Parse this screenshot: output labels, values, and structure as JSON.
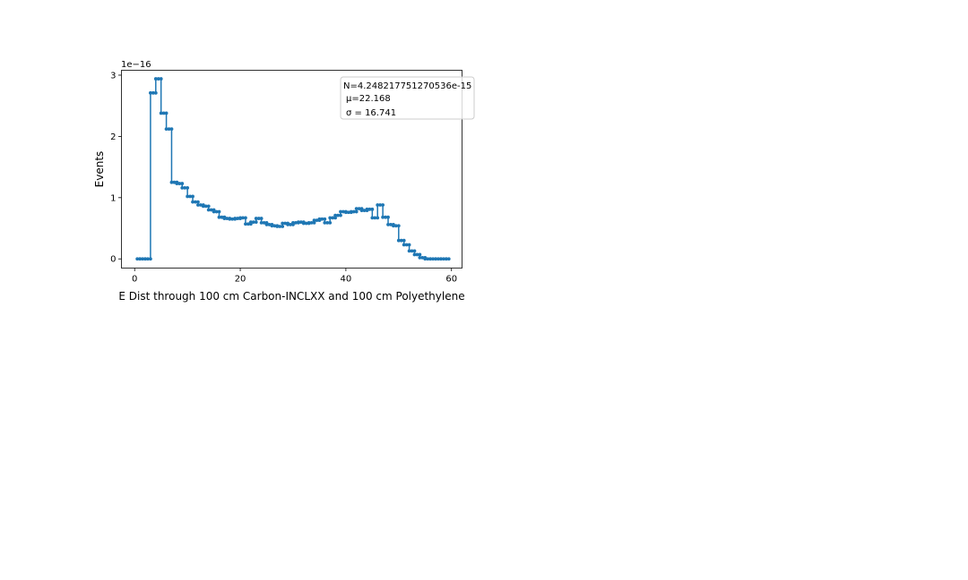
{
  "chart_data": {
    "type": "line",
    "drawstyle": "steps-mid with point markers",
    "title": "",
    "xlabel": "E Dist through 100 cm Carbon-INCLXX and 100 cm Polyethylene",
    "ylabel": "Events",
    "y_offset_label": "1e−16",
    "xlim": [
      -2.5,
      62
    ],
    "ylim": [
      -0.15,
      3.08
    ],
    "x_ticks": [
      0,
      20,
      40,
      60
    ],
    "x_tick_labels": [
      "0",
      "20",
      "40",
      "60"
    ],
    "y_ticks": [
      0,
      1,
      2,
      3
    ],
    "y_tick_labels": [
      "0",
      "1",
      "2",
      "3"
    ],
    "grid": false,
    "line_color": "#1f77b4",
    "stats_box": {
      "placement": "top-right",
      "line1": "N=4.248217751270536e-15",
      "line2": "μ=22.168",
      "line3": "σ = 16.741"
    },
    "series": [
      {
        "x": [
          0.5,
          1.5,
          2.5,
          3.5,
          4.5,
          5.5,
          6.5,
          7.5,
          8.5,
          9.5,
          10.5,
          11.5,
          12.5,
          13.5,
          14.5,
          15.5,
          16.5,
          17.5,
          18.5,
          19.5,
          20.5,
          21.5,
          22.5,
          23.5,
          24.5,
          25.5,
          26.5,
          27.5,
          28.5,
          29.5,
          30.5,
          31.5,
          32.5,
          33.5,
          34.5,
          35.5,
          36.5,
          37.5,
          38.5,
          39.5,
          40.5,
          41.5,
          42.5,
          43.5,
          44.5,
          45.5,
          46.5,
          47.5,
          48.5,
          49.5,
          50.5,
          51.5,
          52.5,
          53.5,
          54.5,
          55.5,
          56.5,
          57.5,
          58.5,
          59.5
        ],
        "y": [
          0.0,
          0.0,
          0.0,
          2.71,
          2.94,
          2.38,
          2.12,
          1.25,
          1.23,
          1.16,
          1.02,
          0.93,
          0.88,
          0.86,
          0.8,
          0.77,
          0.68,
          0.66,
          0.65,
          0.66,
          0.67,
          0.57,
          0.6,
          0.66,
          0.59,
          0.56,
          0.54,
          0.53,
          0.58,
          0.56,
          0.59,
          0.6,
          0.58,
          0.59,
          0.63,
          0.65,
          0.59,
          0.67,
          0.71,
          0.77,
          0.76,
          0.77,
          0.82,
          0.79,
          0.81,
          0.67,
          0.88,
          0.68,
          0.56,
          0.54,
          0.3,
          0.23,
          0.13,
          0.07,
          0.02,
          0.0,
          0.0,
          0.0,
          0.0,
          0.0
        ]
      }
    ]
  }
}
